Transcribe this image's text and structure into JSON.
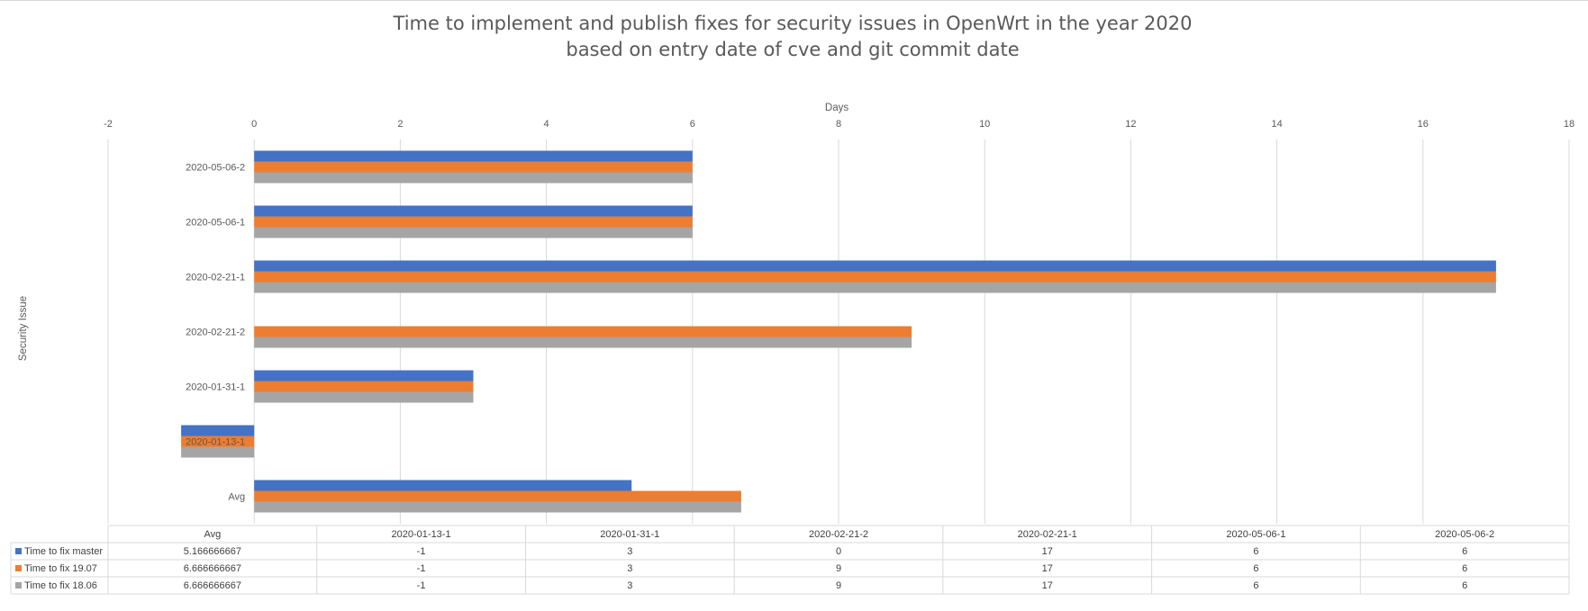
{
  "chart_data": {
    "type": "bar",
    "orientation": "horizontal",
    "title": "Time to implement and publish fixes for security issues in OpenWrt in the year 2020",
    "subtitle": "based on entry date of cve and git commit date",
    "xlabel": "Days",
    "ylabel": "Security Issue",
    "xlim": [
      -2,
      18
    ],
    "x_ticks": [
      "-2",
      "0",
      "2",
      "4",
      "6",
      "8",
      "10",
      "12",
      "14",
      "16",
      "18"
    ],
    "x_tick_values": [
      -2,
      0,
      2,
      4,
      6,
      8,
      10,
      12,
      14,
      16,
      18
    ],
    "categories": [
      "Avg",
      "2020-01-13-1",
      "2020-01-31-1",
      "2020-02-21-2",
      "2020-02-21-1",
      "2020-05-06-1",
      "2020-05-06-2"
    ],
    "series": [
      {
        "name": "Time to fix master",
        "color": "#4472c4",
        "values": [
          5.166666667,
          -1,
          3,
          0,
          17,
          6,
          6
        ],
        "display": [
          "5.166666667",
          "-1",
          "3",
          "0",
          "17",
          "6",
          "6"
        ]
      },
      {
        "name": "Time to fix 19.07",
        "color": "#ed7d31",
        "values": [
          6.666666667,
          -1,
          3,
          9,
          17,
          6,
          6
        ],
        "display": [
          "6.666666667",
          "-1",
          "3",
          "9",
          "17",
          "6",
          "6"
        ]
      },
      {
        "name": "Time to fix 18.06",
        "color": "#a5a5a5",
        "values": [
          6.666666667,
          -1,
          3,
          9,
          17,
          6,
          6
        ],
        "display": [
          "6.666666667",
          "-1",
          "3",
          "9",
          "17",
          "6",
          "6"
        ]
      }
    ],
    "grid": true,
    "data_table": true
  }
}
